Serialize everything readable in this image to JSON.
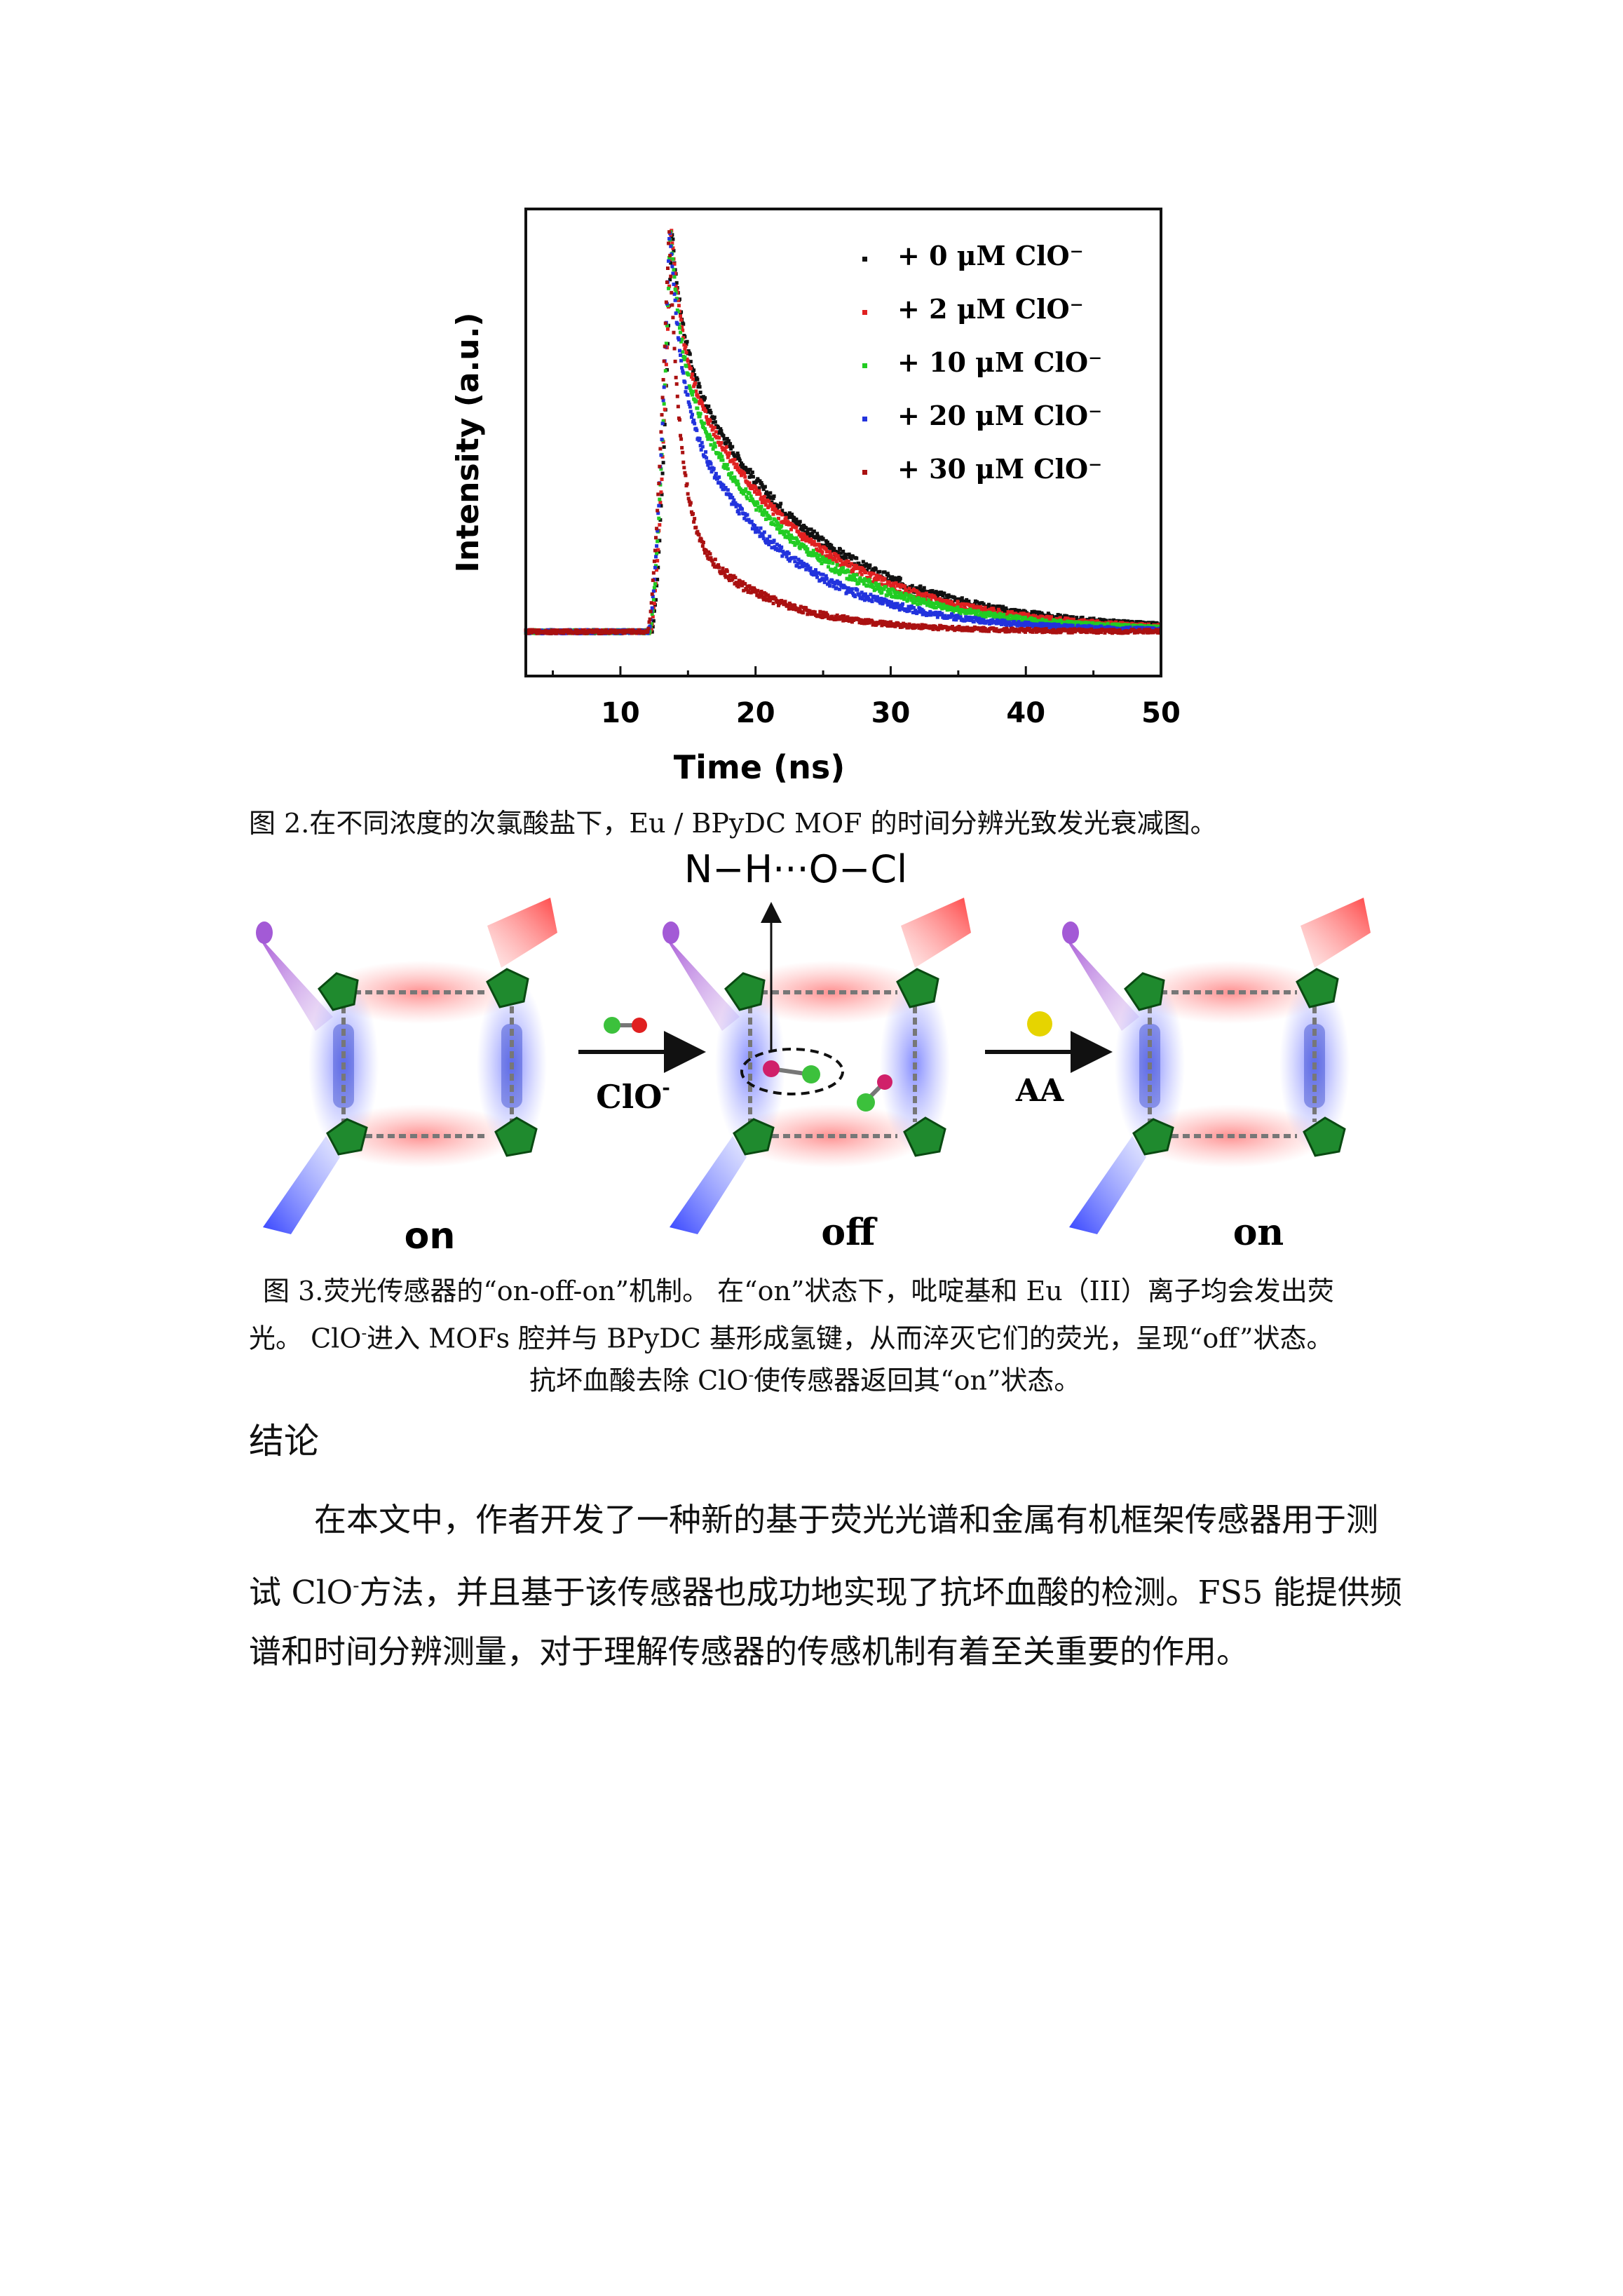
{
  "chart_data": {
    "type": "scatter",
    "title": "",
    "xlabel": "Time (ns)",
    "ylabel": "Intensity (a.u.)",
    "xlim": [
      3,
      50
    ],
    "ylim": [
      0,
      1
    ],
    "xticks": [
      "10",
      "20",
      "30",
      "40",
      "50"
    ],
    "legend_position": "top-right",
    "series": [
      {
        "name": "+ 0 μM ClO⁻",
        "color": "#111111",
        "tau": 9.5,
        "tail": 0.72
      },
      {
        "name": "+ 2 μM ClO⁻",
        "color": "#e02020",
        "tau": 9.0,
        "tail": 0.7
      },
      {
        "name": "+ 10 μM ClO⁻",
        "color": "#22cc22",
        "tau": 8.5,
        "tail": 0.66
      },
      {
        "name": "+ 20 μM ClO⁻",
        "color": "#2233dd",
        "tau": 7.5,
        "tail": 0.6
      },
      {
        "name": "+ 30 μM ClO⁻",
        "color": "#aa1111",
        "tau": 6.0,
        "tail": 0.28
      }
    ]
  },
  "fig2_caption": "图 2.在不同浓度的次氯酸盐下，Eu / BPyDC MOF 的时间分辨光致发光衰减图。",
  "mechanism": {
    "bond_label": "N−H···O−Cl",
    "reagent1": "ClO",
    "reagent1_sup": "-",
    "reagent2": "AA",
    "state_left": "on",
    "state_mid": "off",
    "state_right": "on"
  },
  "fig3_caption": {
    "line1": "图 3.荧光传感器的“on-off-on”机制。 在“on”状态下，吡啶基和 Eu（III）离子均会发出荧",
    "line2_a": "光。 ClO",
    "line2_b": "进入 MOFs 腔并与 BPyDC 基形成氢键，从而淬灭它们的荧光，呈现“off”状态。",
    "line3_a": "抗坏血酸去除 ClO",
    "line3_b": "使传感器返回其“on”状态。"
  },
  "conclusion": {
    "heading": "结论",
    "line1": "在本文中，作者开发了一种新的基于荧光光谱和金属有机框架传感器用于测",
    "line2_a": "试 ClO",
    "line2_b": "方法，并且基于该传感器也成功地实现了抗坏血酸的检测。FS5 能提供频",
    "line3": "谱和时间分辨测量，对于理解传感器的传感机制有着至关重要的作用。"
  }
}
